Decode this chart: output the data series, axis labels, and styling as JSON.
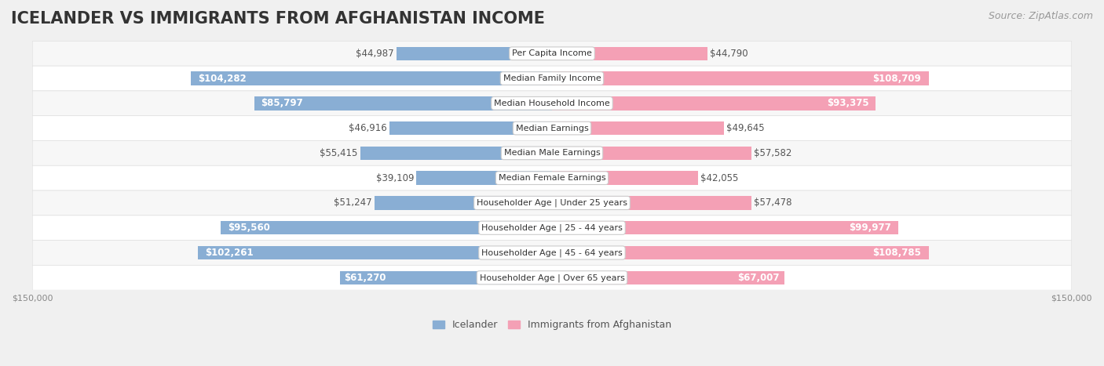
{
  "title": "ICELANDER VS IMMIGRANTS FROM AFGHANISTAN INCOME",
  "source": "Source: ZipAtlas.com",
  "categories": [
    "Per Capita Income",
    "Median Family Income",
    "Median Household Income",
    "Median Earnings",
    "Median Male Earnings",
    "Median Female Earnings",
    "Householder Age | Under 25 years",
    "Householder Age | 25 - 44 years",
    "Householder Age | 45 - 64 years",
    "Householder Age | Over 65 years"
  ],
  "icelander_values": [
    44987,
    104282,
    85797,
    46916,
    55415,
    39109,
    51247,
    95560,
    102261,
    61270
  ],
  "afghanistan_values": [
    44790,
    108709,
    93375,
    49645,
    57582,
    42055,
    57478,
    99977,
    108785,
    67007
  ],
  "icelander_color": "#89aed4",
  "icelander_color_dark": "#6b9bc7",
  "afghanistan_color": "#f4a0b5",
  "afghanistan_color_dark": "#e87fa0",
  "max_value": 150000,
  "background_color": "#f0f0f0",
  "row_bg_color": "#f7f7f7",
  "row_bg_alt": "#ffffff",
  "label_bg_color": "#ffffff",
  "title_fontsize": 15,
  "source_fontsize": 9,
  "value_fontsize": 8.5,
  "category_fontsize": 8,
  "legend_fontsize": 9,
  "axis_fontsize": 8
}
